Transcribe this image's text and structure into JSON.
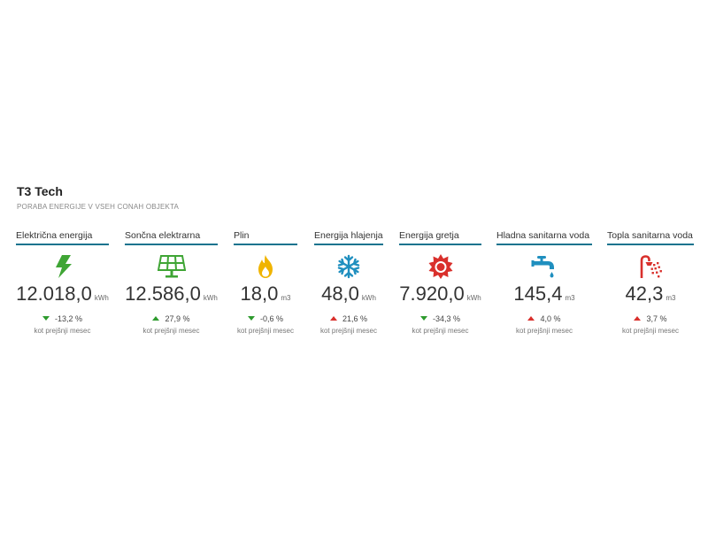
{
  "header": {
    "title": "T3 Tech",
    "subtitle": "PORABA ENERGIJE V VSEH CONAH OBJEKTA"
  },
  "colors": {
    "accent_line": "#17738e",
    "electric": "#3fa535",
    "solar": "#3fa535",
    "gas": "#f0b400",
    "cooling": "#1f8fbf",
    "heating": "#d9302c",
    "cold_water": "#1f8fbf",
    "hot_water": "#d9302c",
    "trend_green": "#2e9b2e",
    "trend_red": "#d9302c"
  },
  "cards": [
    {
      "label": "Električna energija",
      "icon": "lightning-bolt-icon",
      "value": "12.018,0",
      "unit": "kWh",
      "change": "-13,2 %",
      "trend": "down",
      "compare": "kot prejšnji mesec"
    },
    {
      "label": "Sončna elektrarna",
      "icon": "solar-panel-icon",
      "value": "12.586,0",
      "unit": "kWh",
      "change": "27,9 %",
      "trend": "up-green",
      "compare": "kot prejšnji mesec"
    },
    {
      "label": "Plin",
      "icon": "flame-icon",
      "value": "18,0",
      "unit": "m3",
      "change": "-0,6 %",
      "trend": "down",
      "compare": "kot prejšnji mesec"
    },
    {
      "label": "Energija hlajenja",
      "icon": "snowflake-icon",
      "value": "48,0",
      "unit": "kWh",
      "change": "21,6 %",
      "trend": "up-red",
      "compare": "kot prejšnji mesec"
    },
    {
      "label": "Energija gretja",
      "icon": "sun-icon",
      "value": "7.920,0",
      "unit": "kWh",
      "change": "-34,3 %",
      "trend": "down",
      "compare": "kot prejšnji mesec"
    },
    {
      "label": "Hladna sanitarna voda",
      "icon": "water-tap-icon",
      "value": "145,4",
      "unit": "m3",
      "change": "4,0 %",
      "trend": "up-red",
      "compare": "kot prejšnji mesec"
    },
    {
      "label": "Topla sanitarna voda",
      "icon": "shower-icon",
      "value": "42,3",
      "unit": "m3",
      "change": "3,7 %",
      "trend": "up-red",
      "compare": "kot prejšnji mesec"
    }
  ]
}
